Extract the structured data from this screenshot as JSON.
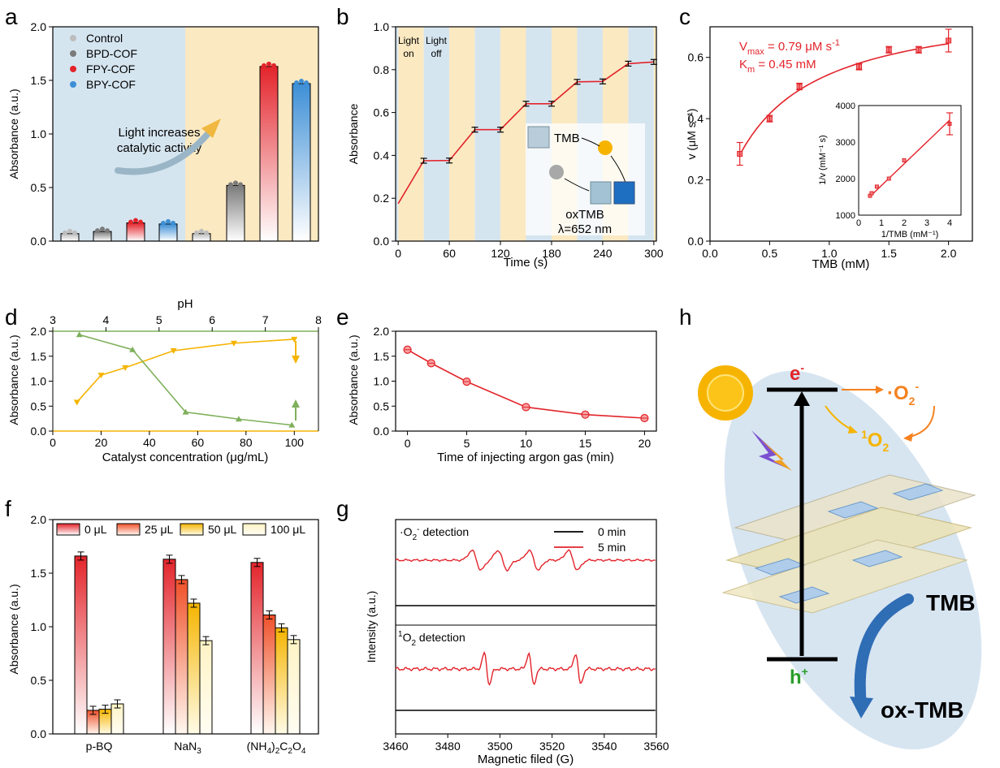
{
  "panel_letters": [
    "a",
    "b",
    "c",
    "d",
    "e",
    "f",
    "g",
    "h"
  ],
  "colors": {
    "control": "#bdbdbd",
    "bpd": "#7a7a7a",
    "fpy": "#e3242b",
    "bpy": "#3d8fd6",
    "red": "#e3242b",
    "green": "#7fb05b",
    "yellow": "#f5b400",
    "orange": "#f58220",
    "blue_band": "#d5e5f0",
    "yellow_band": "#fbe9c2",
    "panel_h_blue": "#c9dcec",
    "ox_blue": "#2f6db5",
    "h_green": "#2a9d2a"
  },
  "icons": [
    "sun-icon",
    "lightning-icon",
    "cof-layers-illustration",
    "curved-arrow-icon"
  ],
  "chart_data": [
    {
      "panel": "a",
      "type": "bar",
      "ylabel": "Absorbance (a.u.)",
      "ylim": [
        0,
        2.0
      ],
      "yticks": [
        "0.0",
        "0.5",
        "1.0",
        "1.5",
        "2.0"
      ],
      "legend": [
        "Control",
        "BPD-COF",
        "FPY-COF",
        "BPY-COF"
      ],
      "annotation": [
        "Light increases",
        "catalytic activity"
      ],
      "dark_background": "#d5e5f0",
      "light_background": "#fbe9c2",
      "series": [
        {
          "name": "Control",
          "values_dark": 0.07,
          "values_light": 0.07
        },
        {
          "name": "BPD-COF",
          "values_dark": 0.09,
          "values_light": 0.52
        },
        {
          "name": "FPY-COF",
          "values_dark": 0.17,
          "values_light": 1.63
        },
        {
          "name": "BPY-COF",
          "values_dark": 0.16,
          "values_light": 1.47
        }
      ]
    },
    {
      "panel": "b",
      "type": "line",
      "xlabel": "Time (s)",
      "ylabel": "Absorbance",
      "xlim": [
        0,
        300
      ],
      "ylim": [
        0,
        1.0
      ],
      "xticks": [
        "0",
        "60",
        "120",
        "180",
        "240",
        "300"
      ],
      "yticks": [
        "0.0",
        "0.2",
        "0.4",
        "0.6",
        "0.8",
        "1.0"
      ],
      "labels": {
        "light_on": [
          "Light",
          "on"
        ],
        "light_off": [
          "Light",
          "off"
        ]
      },
      "inset": {
        "tmb": "TMB",
        "oxtmb": "oxTMB",
        "lambda": "λ=652 nm"
      },
      "x": [
        0,
        30,
        60,
        90,
        120,
        150,
        180,
        210,
        240,
        270,
        300
      ],
      "y": [
        0.175,
        0.375,
        0.376,
        0.52,
        0.52,
        0.641,
        0.641,
        0.743,
        0.745,
        0.828,
        0.836
      ]
    },
    {
      "panel": "c",
      "type": "scatter",
      "xlabel": "TMB (mM)",
      "ylabel": "v (μM s⁻¹)",
      "xlim": [
        0,
        2.2
      ],
      "ylim": [
        0,
        0.7
      ],
      "xticks": [
        "0.0",
        "0.5",
        "1.0",
        "1.5",
        "2.0"
      ],
      "yticks": [
        "0.0",
        "0.2",
        "0.4",
        "0.6"
      ],
      "vmax_text": "V",
      "vmax_sub": "max",
      "vmax_value": " = 0.79 μM s",
      "vmax_sup": "-1",
      "km_text": "K",
      "km_sub": "m",
      "km_value": " =  0.45 mM",
      "x": [
        0.25,
        0.5,
        0.75,
        1.25,
        1.5,
        1.75,
        2.0
      ],
      "y": [
        0.285,
        0.4,
        0.505,
        0.57,
        0.625,
        0.625,
        0.655
      ],
      "fit": {
        "vmax": 0.79,
        "km": 0.45
      },
      "inset": {
        "xlabel": "1/TMB (mM⁻¹)",
        "ylabel": "1/v (mM⁻¹ s)",
        "xlim": [
          0,
          4.5
        ],
        "ylim": [
          1000,
          4000
        ],
        "xticks": [
          "0",
          "1",
          "2",
          "3",
          "4"
        ],
        "yticks": [
          "1000",
          "2000",
          "3000",
          "4000"
        ],
        "x": [
          0.5,
          0.57,
          0.8,
          1.33,
          2.0,
          4.0
        ],
        "y": [
          1530,
          1600,
          1780,
          2000,
          2500,
          3500
        ]
      }
    },
    {
      "panel": "d",
      "type": "line",
      "xlabel": "Catalyst concentration (μg/mL)",
      "ylabel": "Absorbance (a.u.)",
      "top_label": "pH",
      "xlim": [
        0,
        110
      ],
      "ylim": [
        0,
        2.0
      ],
      "top_xlim": [
        3,
        8
      ],
      "xticks": [
        "0",
        "20",
        "40",
        "60",
        "80",
        "100"
      ],
      "top_ticks": [
        "3",
        "4",
        "5",
        "6",
        "7",
        "8"
      ],
      "yticks": [
        "0.0",
        "0.5",
        "1.0",
        "1.5",
        "2.0"
      ],
      "series": [
        {
          "name": "Catalyst concentration",
          "x": [
            10,
            20,
            30,
            50,
            75,
            100
          ],
          "y": [
            0.58,
            1.12,
            1.27,
            1.61,
            1.76,
            1.84
          ]
        },
        {
          "name": "pH",
          "x": [
            3.5,
            4.5,
            5.5,
            6.5,
            7.5
          ],
          "y": [
            1.93,
            1.63,
            0.38,
            0.24,
            0.12
          ]
        }
      ]
    },
    {
      "panel": "e",
      "type": "line",
      "xlabel": "Time of injecting argon gas (min)",
      "ylabel": "Absorbance (a.u.)",
      "xlim": [
        -1,
        21
      ],
      "ylim": [
        0,
        2.0
      ],
      "xticks": [
        "0",
        "5",
        "10",
        "15",
        "20"
      ],
      "yticks": [
        "0.0",
        "0.5",
        "1.0",
        "1.5",
        "2.0"
      ],
      "x": [
        0,
        2,
        5,
        10,
        15,
        20
      ],
      "y": [
        1.63,
        1.36,
        0.99,
        0.48,
        0.33,
        0.26
      ]
    },
    {
      "panel": "f",
      "type": "bar",
      "ylabel": "Absorbance (a.u.)",
      "ylim": [
        0,
        2.0
      ],
      "yticks": [
        "0.0",
        "0.5",
        "1.0",
        "1.5",
        "2.0"
      ],
      "categories": [
        "p-BQ",
        "NaN3",
        "(NH4)2C2O4"
      ],
      "series": [
        {
          "name": "0 μL",
          "values": [
            1.66,
            1.63,
            1.6
          ]
        },
        {
          "name": "25 μL",
          "values": [
            0.22,
            1.44,
            1.11
          ]
        },
        {
          "name": "50 μL",
          "values": [
            0.23,
            1.22,
            0.99
          ]
        },
        {
          "name": "100 μL",
          "values": [
            0.28,
            0.87,
            0.88
          ]
        }
      ]
    },
    {
      "panel": "g",
      "type": "line",
      "xlabel": "Magnetic filed (G)",
      "ylabel": "Intensity (a.u.)",
      "xlim": [
        3460,
        3560
      ],
      "xticks": [
        "3460",
        "3480",
        "3500",
        "3520",
        "3540",
        "3560"
      ],
      "legend": [
        "0 min",
        "5 min"
      ],
      "top_title": "·O",
      "top_title_sub": "2",
      "top_title_sup": "-",
      "top_title_rest": " detection",
      "bottom_title_sup": "1",
      "bottom_title": "O",
      "bottom_title_sub": "2",
      "bottom_title_rest": " detection",
      "superoxide_peaks": [
        3491,
        3501,
        3513,
        3528
      ],
      "singlet_oxygen_peaks": [
        3495,
        3512,
        3530
      ]
    }
  ],
  "panel_h": {
    "electron_label": "e",
    "electron_sup": "-",
    "hole_label": "h",
    "hole_sup": "+",
    "superoxide": "·O",
    "superoxide_sub": "2",
    "superoxide_sup": "-",
    "singlet_sup": "1",
    "singlet": "O",
    "singlet_sub": "2",
    "tmb": "TMB",
    "ox_tmb": "ox-TMB"
  }
}
